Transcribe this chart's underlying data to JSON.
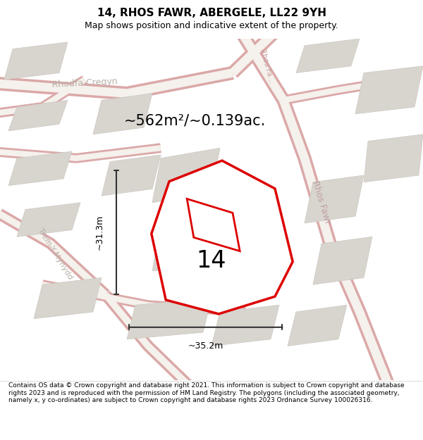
{
  "title": "14, RHOS FAWR, ABERGELE, LL22 9YH",
  "subtitle": "Map shows position and indicative extent of the property.",
  "area_text": "~562m²/~0.139ac.",
  "label_14": "14",
  "dim_width": "~35.2m",
  "dim_height": "~31.3m",
  "footer": "Contains OS data © Crown copyright and database right 2021. This information is subject to Crown copyright and database rights 2023 and is reproduced with the permission of HM Land Registry. The polygons (including the associated geometry, namely x, y co-ordinates) are subject to Crown copyright and database rights 2023 Ordnance Survey 100026316.",
  "bg_map": "#f2f0ec",
  "road_outer": "#e8b8b8",
  "road_inner": "#f8f4f0",
  "block_fc": "#d8d4ce",
  "block_ec": "#ccc8c2",
  "red_outline": "#dd0000",
  "prop_fill": "#e8e4df",
  "figsize": [
    6.0,
    6.25
  ],
  "dpi": 100,
  "title_fs": 11,
  "subtitle_fs": 9,
  "area_fs": 15,
  "label_fs": 24,
  "dim_fs": 9,
  "footer_fs": 6.5,
  "street_color": "#b8b0a8",
  "street_fs": 9
}
